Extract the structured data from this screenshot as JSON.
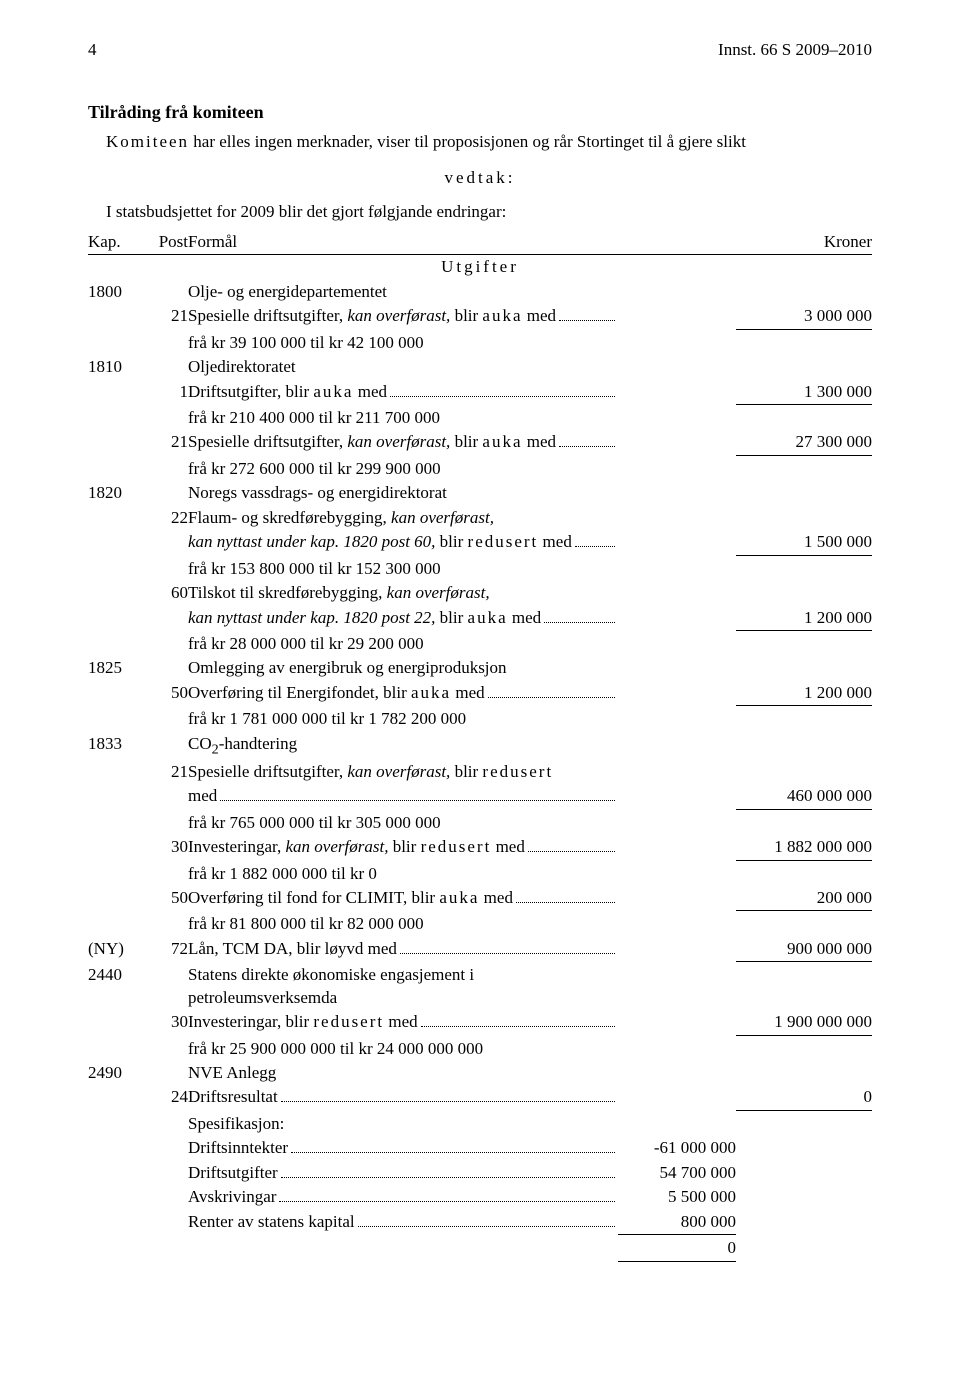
{
  "header": {
    "page_no": "4",
    "doc_ref": "Innst. 66 S 2009–2010"
  },
  "section_title": "Tilråding frå komiteen",
  "intro_prefix": "Komiteen",
  "intro_rest": " har elles ingen merknader, viser til proposisjonen og rår Stortinget til å gjere slikt",
  "vedtak": "vedtak:",
  "budget_line": "I statsbudsjettet for 2009 blir det gjort følgjande endringar:",
  "tbl": {
    "h_kap": "Kap.",
    "h_post": "Post",
    "h_formal": "Formål",
    "h_kroner": "Kroner",
    "utgifter": "Utgifter"
  },
  "rows": {
    "r1800": {
      "kap": "1800",
      "title": "Olje- og energidepartementet"
    },
    "r1800_21": {
      "post": "21",
      "desc_a": "Spesielle driftsutgifter, ",
      "desc_i": "kan overførast,",
      "desc_b": " blir ",
      "desc_s": "auka",
      "desc_c": " med",
      "amount": "3 000 000",
      "sub": "frå kr 39 100 000 til kr 42 100 000"
    },
    "r1810": {
      "kap": "1810",
      "title": "Oljedirektoratet"
    },
    "r1810_1": {
      "post": "1",
      "desc_a": "Driftsutgifter, blir ",
      "desc_s": "auka",
      "desc_c": " med",
      "amount": "1 300 000",
      "sub": "frå kr 210 400 000 til kr 211 700 000"
    },
    "r1810_21": {
      "post": "21",
      "desc_a": "Spesielle driftsutgifter, ",
      "desc_i": "kan overførast,",
      "desc_b": " blir ",
      "desc_s": "auka",
      "desc_c": " med",
      "amount": "27 300 000",
      "sub": "frå kr 272 600 000 til kr 299 900 000"
    },
    "r1820": {
      "kap": "1820",
      "title": "Noregs vassdrags- og energidirektorat"
    },
    "r1820_22": {
      "post": "22",
      "line1_a": "Flaum- og skredførebygging, ",
      "line1_i": "kan overførast,",
      "line2_i": "kan nyttast under kap. 1820 post 60,",
      "line2_b": " blir ",
      "line2_s": "redusert",
      "line2_c": " med",
      "amount": "1 500 000",
      "sub": "frå kr 153 800 000 til kr 152 300 000"
    },
    "r1820_60": {
      "post": "60",
      "line1_a": "Tilskot til skredførebygging, ",
      "line1_i": "kan overførast,",
      "line2_i": "kan nyttast under kap. 1820 post 22,",
      "line2_b": " blir ",
      "line2_s": "auka",
      "line2_c": " med",
      "amount": "1 200 000",
      "sub": "frå kr 28 000 000 til kr 29 200 000"
    },
    "r1825": {
      "kap": "1825",
      "title": "Omlegging av energibruk og energiproduksjon"
    },
    "r1825_50": {
      "post": "50",
      "desc_a": "Overføring til Energifondet, blir ",
      "desc_s": "auka",
      "desc_c": " med",
      "amount": "1 200 000",
      "sub": "frå kr 1 781 000 000 til kr 1 782 200 000"
    },
    "r1833": {
      "kap": "1833",
      "title_a": "CO",
      "title_sub": "2",
      "title_b": "-handtering"
    },
    "r1833_21": {
      "post": "21",
      "line1_a": "Spesielle driftsutgifter, ",
      "line1_i": "kan overførast,",
      "line1_b": " blir ",
      "line1_s": "redusert",
      "line2": "med",
      "amount": "460 000 000",
      "sub": "frå kr 765 000 000 til kr 305 000 000"
    },
    "r1833_30": {
      "post": "30",
      "desc_a": "Investeringar, ",
      "desc_i": "kan overførast,",
      "desc_b": " blir ",
      "desc_s": "redusert",
      "desc_c": " med",
      "amount": "1 882 000 000",
      "sub": "frå kr 1 882 000 000 til kr 0"
    },
    "r1833_50": {
      "post": "50",
      "desc_a": "Overføring til fond for CLIMIT, blir ",
      "desc_s": "auka",
      "desc_c": " med",
      "amount": "200 000",
      "sub": "frå kr 81 800 000 til kr 82 000 000"
    },
    "rNY_72": {
      "kap": "(NY)",
      "post": "72",
      "desc_a": "Lån, TCM DA, blir løyvd med",
      "amount": "900 000 000"
    },
    "r2440": {
      "kap": "2440",
      "title": "Statens direkte økonomiske engasjement i petroleumsverksemda"
    },
    "r2440_30": {
      "post": "30",
      "desc_a": "Investeringar, blir ",
      "desc_s": "redusert",
      "desc_c": " med",
      "amount": "1 900 000 000",
      "sub": "frå kr 25 900 000 000 til kr 24 000 000 000"
    },
    "r2490": {
      "kap": "2490",
      "title": "NVE Anlegg"
    },
    "r2490_24": {
      "post": "24",
      "desc": "Driftsresultat",
      "amount": "0",
      "spes": "Spesifikasjon:",
      "l1": "Driftsinntekter",
      "v1": "-61 000 000",
      "l2": "Driftsutgifter",
      "v2": "54 700 000",
      "l3": "Avskrivingar",
      "v3": "5 500 000",
      "l4": "Renter av statens kapital",
      "v4": "800 000",
      "total": "0"
    }
  }
}
